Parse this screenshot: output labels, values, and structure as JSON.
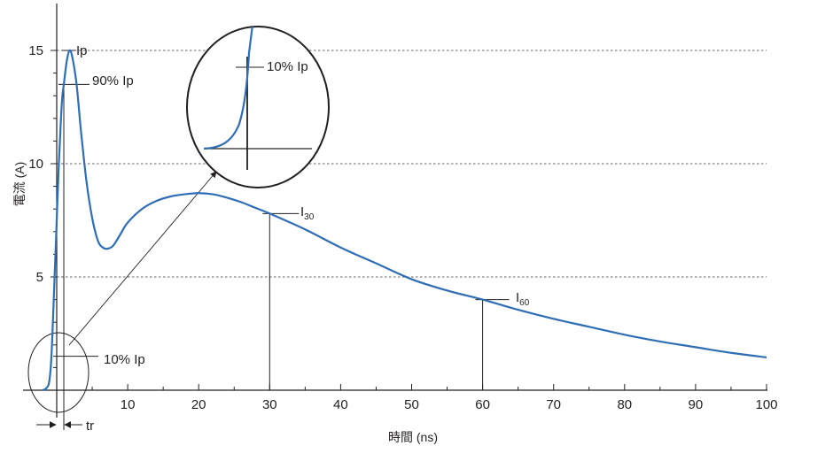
{
  "chart_data": {
    "type": "line",
    "xlabel": "時間 (ns)",
    "ylabel": "電流 (A)",
    "xlim": [
      -2,
      100
    ],
    "ylim": [
      0,
      16.5
    ],
    "x_ticks": [
      10,
      20,
      30,
      40,
      50,
      60,
      70,
      80,
      90,
      100
    ],
    "y_ticks": [
      5,
      10,
      15
    ],
    "grid": "horizontal dashed at 5, 10, 15",
    "series": [
      {
        "color": "#2f6db5",
        "points": [
          [
            -2,
            0
          ],
          [
            -1.6,
            0.05
          ],
          [
            -1.2,
            0.2
          ],
          [
            -1.0,
            0.5
          ],
          [
            -0.8,
            1.2
          ],
          [
            -0.6,
            2.5
          ],
          [
            -0.3,
            5.0
          ],
          [
            0,
            7.5
          ],
          [
            0.3,
            10.0
          ],
          [
            0.6,
            12.0
          ],
          [
            0.8,
            13.0
          ],
          [
            1.0,
            13.5
          ],
          [
            1.4,
            14.5
          ],
          [
            1.8,
            15.0
          ],
          [
            2.2,
            14.7
          ],
          [
            2.8,
            13.5
          ],
          [
            3.4,
            11.5
          ],
          [
            4.2,
            9.2
          ],
          [
            5.0,
            7.6
          ],
          [
            5.8,
            6.6
          ],
          [
            6.5,
            6.3
          ],
          [
            7.2,
            6.25
          ],
          [
            8.0,
            6.4
          ],
          [
            9.0,
            6.9
          ],
          [
            10.0,
            7.4
          ],
          [
            12.0,
            8.0
          ],
          [
            14.0,
            8.35
          ],
          [
            16.0,
            8.55
          ],
          [
            18.0,
            8.65
          ],
          [
            20.0,
            8.7
          ],
          [
            22.0,
            8.65
          ],
          [
            24.0,
            8.5
          ],
          [
            26.0,
            8.3
          ],
          [
            28.0,
            8.05
          ],
          [
            30.0,
            7.8
          ],
          [
            35.0,
            7.1
          ],
          [
            40.0,
            6.3
          ],
          [
            45.0,
            5.6
          ],
          [
            50.0,
            4.9
          ],
          [
            55.0,
            4.4
          ],
          [
            60.0,
            4.0
          ],
          [
            65.0,
            3.55
          ],
          [
            70.0,
            3.15
          ],
          [
            75.0,
            2.8
          ],
          [
            80.0,
            2.45
          ],
          [
            85.0,
            2.15
          ],
          [
            90.0,
            1.9
          ],
          [
            95.0,
            1.65
          ],
          [
            100.0,
            1.45
          ]
        ]
      }
    ],
    "annotations": {
      "ip": "Ip",
      "p90": "90% Ip",
      "p10": "10% Ip",
      "zoom_p10": "10% Ip",
      "i30_main": "I",
      "i30_sub": "30",
      "i60_main": "I",
      "i60_sub": "60",
      "tr": "tr"
    },
    "reference_values": {
      "ip": 15.0,
      "p90": 13.5,
      "p10": 1.5,
      "i30_x": 30,
      "i30_y": 7.8,
      "i60_x": 60,
      "i60_y": 4.0
    }
  }
}
